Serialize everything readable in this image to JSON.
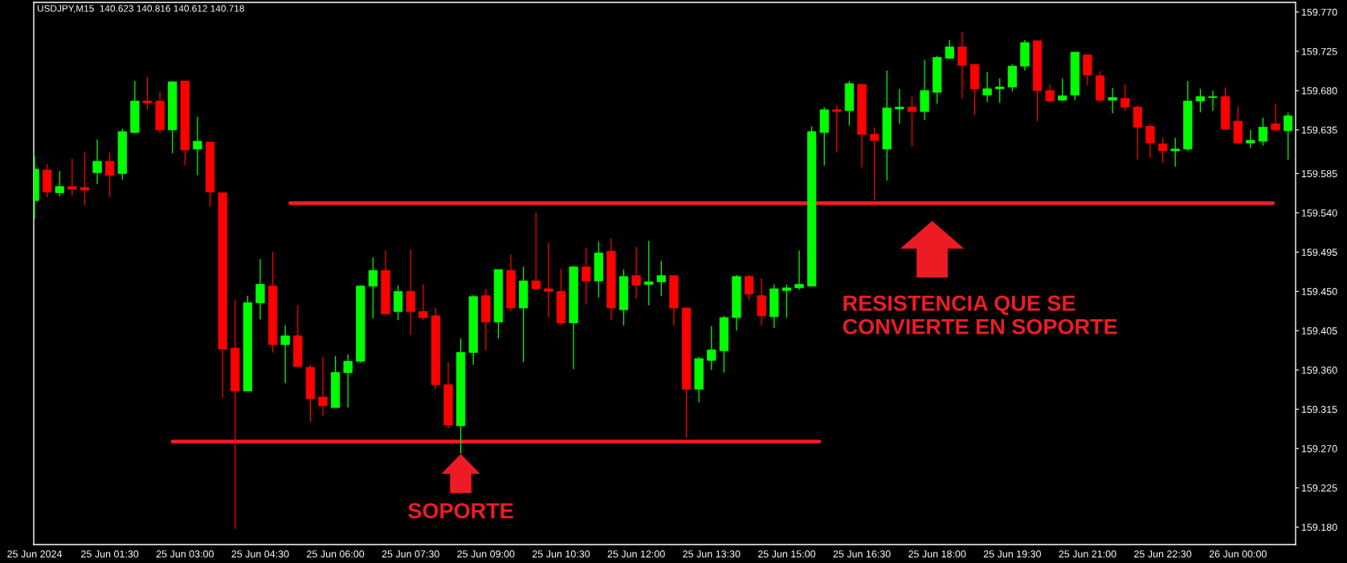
{
  "chart_data": {
    "type": "candlestick",
    "title": "USDJPY,M15  140.623 140.816 140.612 140.718",
    "x": [
      "2024-06-25T00:00",
      "2024-06-25T00:15",
      "2024-06-25T00:30",
      "2024-06-25T00:45",
      "2024-06-25T01:00",
      "2024-06-25T01:15",
      "2024-06-25T01:30",
      "2024-06-25T01:45",
      "2024-06-25T02:00",
      "2024-06-25T02:15",
      "2024-06-25T02:30",
      "2024-06-25T02:45",
      "2024-06-25T03:00",
      "2024-06-25T03:15",
      "2024-06-25T03:30",
      "2024-06-25T03:45",
      "2024-06-25T04:00",
      "2024-06-25T04:15",
      "2024-06-25T04:30",
      "2024-06-25T04:45",
      "2024-06-25T05:00",
      "2024-06-25T05:15",
      "2024-06-25T05:30",
      "2024-06-25T05:45",
      "2024-06-25T06:00",
      "2024-06-25T06:15",
      "2024-06-25T06:30",
      "2024-06-25T06:45",
      "2024-06-25T07:00",
      "2024-06-25T07:15",
      "2024-06-25T07:30",
      "2024-06-25T07:45",
      "2024-06-25T08:00",
      "2024-06-25T08:15",
      "2024-06-25T08:30",
      "2024-06-25T08:45",
      "2024-06-25T09:00",
      "2024-06-25T09:15",
      "2024-06-25T09:30",
      "2024-06-25T09:45",
      "2024-06-25T10:00",
      "2024-06-25T10:15",
      "2024-06-25T10:30",
      "2024-06-25T10:45",
      "2024-06-25T11:00",
      "2024-06-25T11:15",
      "2024-06-25T11:30",
      "2024-06-25T11:45",
      "2024-06-25T12:00",
      "2024-06-25T12:15",
      "2024-06-25T12:30",
      "2024-06-25T12:45",
      "2024-06-25T13:00",
      "2024-06-25T13:15",
      "2024-06-25T13:30",
      "2024-06-25T13:45",
      "2024-06-25T14:00",
      "2024-06-25T14:15",
      "2024-06-25T14:30",
      "2024-06-25T14:45",
      "2024-06-25T15:00",
      "2024-06-25T15:15",
      "2024-06-25T15:30",
      "2024-06-25T15:45",
      "2024-06-25T16:00",
      "2024-06-25T16:15",
      "2024-06-25T16:30",
      "2024-06-25T16:45",
      "2024-06-25T17:00",
      "2024-06-25T17:15",
      "2024-06-25T17:30",
      "2024-06-25T17:45",
      "2024-06-25T18:00",
      "2024-06-25T18:15",
      "2024-06-25T18:30",
      "2024-06-25T18:45",
      "2024-06-25T19:00",
      "2024-06-25T19:15",
      "2024-06-25T19:30",
      "2024-06-25T19:45",
      "2024-06-25T20:00",
      "2024-06-25T20:15",
      "2024-06-25T20:30",
      "2024-06-25T20:45",
      "2024-06-25T21:00",
      "2024-06-25T21:15",
      "2024-06-25T21:30",
      "2024-06-25T21:45",
      "2024-06-25T22:00",
      "2024-06-25T22:15",
      "2024-06-25T22:30",
      "2024-06-25T22:45",
      "2024-06-25T23:00",
      "2024-06-25T23:15",
      "2024-06-25T23:30",
      "2024-06-25T23:45",
      "2024-06-26T00:00",
      "2024-06-26T00:15",
      "2024-06-26T00:30",
      "2024-06-26T00:45",
      "2024-06-26T01:00"
    ],
    "ohlc": [
      [
        159.554,
        159.605,
        159.533,
        159.59
      ],
      [
        159.589,
        159.596,
        159.558,
        159.564
      ],
      [
        159.563,
        159.588,
        159.559,
        159.57
      ],
      [
        159.57,
        159.602,
        159.56,
        159.567
      ],
      [
        159.569,
        159.609,
        159.549,
        159.566
      ],
      [
        159.586,
        159.624,
        159.573,
        159.599
      ],
      [
        159.599,
        159.609,
        159.558,
        159.583
      ],
      [
        159.585,
        159.636,
        159.578,
        159.633
      ],
      [
        159.632,
        159.691,
        159.631,
        159.668
      ],
      [
        159.668,
        159.696,
        159.658,
        159.666
      ],
      [
        159.668,
        159.679,
        159.631,
        159.635
      ],
      [
        159.635,
        159.691,
        159.608,
        159.69
      ],
      [
        159.691,
        159.691,
        159.594,
        159.612
      ],
      [
        159.613,
        159.65,
        159.583,
        159.622
      ],
      [
        159.621,
        159.621,
        159.547,
        159.564
      ],
      [
        159.563,
        159.563,
        159.328,
        159.384
      ],
      [
        159.385,
        159.44,
        159.178,
        159.336
      ],
      [
        159.336,
        159.445,
        159.336,
        159.437
      ],
      [
        159.437,
        159.487,
        159.418,
        159.458
      ],
      [
        159.456,
        159.495,
        159.38,
        159.389
      ],
      [
        159.389,
        159.411,
        159.345,
        159.399
      ],
      [
        159.399,
        159.434,
        159.364,
        159.364
      ],
      [
        159.363,
        159.366,
        159.3,
        159.327
      ],
      [
        159.329,
        159.375,
        159.307,
        159.319
      ],
      [
        159.317,
        159.376,
        159.317,
        159.357
      ],
      [
        159.357,
        159.378,
        159.317,
        159.37
      ],
      [
        159.37,
        159.457,
        159.368,
        159.456
      ],
      [
        159.456,
        159.489,
        159.419,
        159.474
      ],
      [
        159.474,
        159.497,
        159.424,
        159.424
      ],
      [
        159.427,
        159.457,
        159.417,
        159.45
      ],
      [
        159.45,
        159.498,
        159.4,
        159.427
      ],
      [
        159.427,
        159.458,
        159.417,
        159.42
      ],
      [
        159.422,
        159.431,
        159.338,
        159.343
      ],
      [
        159.343,
        159.369,
        159.293,
        159.297
      ],
      [
        159.296,
        159.396,
        159.264,
        159.38
      ],
      [
        159.38,
        159.446,
        159.366,
        159.444
      ],
      [
        159.445,
        159.453,
        159.382,
        159.415
      ],
      [
        159.415,
        159.475,
        159.396,
        159.475
      ],
      [
        159.474,
        159.492,
        159.427,
        159.431
      ],
      [
        159.431,
        159.478,
        159.369,
        159.462
      ],
      [
        159.462,
        159.54,
        159.452,
        159.453
      ],
      [
        159.453,
        159.506,
        159.42,
        159.45
      ],
      [
        159.45,
        159.476,
        159.411,
        159.414
      ],
      [
        159.414,
        159.479,
        159.361,
        159.478
      ],
      [
        159.478,
        159.5,
        159.435,
        159.462
      ],
      [
        159.462,
        159.507,
        159.443,
        159.494
      ],
      [
        159.496,
        159.511,
        159.417,
        159.431
      ],
      [
        159.429,
        159.475,
        159.411,
        159.467
      ],
      [
        159.468,
        159.501,
        159.442,
        159.457
      ],
      [
        159.458,
        159.508,
        159.434,
        159.461
      ],
      [
        159.461,
        159.485,
        159.445,
        159.468
      ],
      [
        159.468,
        159.468,
        159.411,
        159.431
      ],
      [
        159.431,
        159.431,
        159.282,
        159.338
      ],
      [
        159.338,
        159.375,
        159.323,
        159.373
      ],
      [
        159.371,
        159.41,
        159.36,
        159.383
      ],
      [
        159.382,
        159.422,
        159.357,
        159.42
      ],
      [
        159.42,
        159.469,
        159.405,
        159.467
      ],
      [
        159.467,
        159.469,
        159.44,
        159.447
      ],
      [
        159.445,
        159.465,
        159.411,
        159.422
      ],
      [
        159.421,
        159.458,
        159.408,
        159.453
      ],
      [
        159.451,
        159.458,
        159.42,
        159.454
      ],
      [
        159.454,
        159.497,
        159.452,
        159.458
      ],
      [
        159.456,
        159.639,
        159.456,
        159.633
      ],
      [
        159.632,
        159.661,
        159.594,
        159.658
      ],
      [
        159.658,
        159.663,
        159.609,
        159.656
      ],
      [
        159.657,
        159.691,
        159.64,
        159.688
      ],
      [
        159.687,
        159.688,
        159.592,
        159.63
      ],
      [
        159.63,
        159.638,
        159.554,
        159.623
      ],
      [
        159.613,
        159.703,
        159.577,
        159.66
      ],
      [
        159.659,
        159.682,
        159.642,
        159.661
      ],
      [
        159.661,
        159.673,
        159.616,
        159.656
      ],
      [
        159.656,
        159.715,
        159.646,
        159.68
      ],
      [
        159.678,
        159.72,
        159.665,
        159.718
      ],
      [
        159.717,
        159.738,
        159.716,
        159.73
      ],
      [
        159.73,
        159.747,
        159.671,
        159.709
      ],
      [
        159.71,
        159.71,
        159.652,
        159.682
      ],
      [
        159.675,
        159.701,
        159.667,
        159.682
      ],
      [
        159.682,
        159.694,
        159.666,
        159.684
      ],
      [
        159.684,
        159.71,
        159.679,
        159.708
      ],
      [
        159.708,
        159.738,
        159.703,
        159.735
      ],
      [
        159.737,
        159.737,
        159.645,
        159.68
      ],
      [
        159.68,
        159.687,
        159.667,
        159.668
      ],
      [
        159.669,
        159.694,
        159.668,
        159.674
      ],
      [
        159.675,
        159.724,
        159.669,
        159.724
      ],
      [
        159.721,
        159.721,
        159.686,
        159.698
      ],
      [
        159.697,
        159.702,
        159.667,
        159.669
      ],
      [
        159.669,
        159.683,
        159.654,
        159.672
      ],
      [
        159.671,
        159.687,
        159.657,
        159.661
      ],
      [
        159.661,
        159.663,
        159.601,
        159.638
      ],
      [
        159.639,
        159.642,
        159.603,
        159.62
      ],
      [
        159.619,
        159.626,
        159.597,
        159.611
      ],
      [
        159.611,
        159.626,
        159.593,
        159.613
      ],
      [
        159.613,
        159.691,
        159.611,
        159.668
      ],
      [
        159.668,
        159.682,
        159.655,
        159.673
      ],
      [
        159.672,
        159.68,
        159.657,
        159.673
      ],
      [
        159.673,
        159.684,
        159.635,
        159.636
      ],
      [
        159.645,
        159.662,
        159.62,
        159.62
      ],
      [
        159.62,
        159.635,
        159.614,
        159.623
      ],
      [
        159.622,
        159.649,
        159.617,
        159.638
      ],
      [
        159.642,
        159.665,
        159.633,
        159.635
      ],
      [
        159.634,
        159.655,
        159.601,
        159.651
      ]
    ],
    "colors": [
      "#00ff00",
      "#ff0000",
      "#00ff00",
      "#ff0000",
      "#ff0000",
      "#00ff00",
      "#ff0000",
      "#00ff00",
      "#00ff00",
      "#ff0000",
      "#ff0000",
      "#00ff00",
      "#ff0000",
      "#00ff00",
      "#ff0000",
      "#ff0000",
      "#ff0000",
      "#00ff00",
      "#00ff00",
      "#ff0000",
      "#00ff00",
      "#ff0000",
      "#ff0000",
      "#ff0000",
      "#00ff00",
      "#00ff00",
      "#00ff00",
      "#00ff00",
      "#ff0000",
      "#00ff00",
      "#ff0000",
      "#ff0000",
      "#ff0000",
      "#ff0000",
      "#00ff00",
      "#00ff00",
      "#ff0000",
      "#00ff00",
      "#ff0000",
      "#00ff00",
      "#ff0000",
      "#ff0000",
      "#ff0000",
      "#00ff00",
      "#ff0000",
      "#00ff00",
      "#ff0000",
      "#00ff00",
      "#ff0000",
      "#00ff00",
      "#00ff00",
      "#ff0000",
      "#ff0000",
      "#00ff00",
      "#00ff00",
      "#00ff00",
      "#00ff00",
      "#ff0000",
      "#ff0000",
      "#00ff00",
      "#00ff00",
      "#00ff00",
      "#00ff00",
      "#00ff00",
      "#ff0000",
      "#00ff00",
      "#ff0000",
      "#ff0000",
      "#00ff00",
      "#00ff00",
      "#ff0000",
      "#00ff00",
      "#00ff00",
      "#00ff00",
      "#ff0000",
      "#ff0000",
      "#00ff00",
      "#00ff00",
      "#00ff00",
      "#00ff00",
      "#ff0000",
      "#ff0000",
      "#00ff00",
      "#00ff00",
      "#ff0000",
      "#ff0000",
      "#00ff00",
      "#ff0000",
      "#ff0000",
      "#ff0000",
      "#ff0000",
      "#00ff00",
      "#00ff00",
      "#00ff00",
      "#00ff00",
      "#ff0000",
      "#ff0000",
      "#00ff00",
      "#00ff00",
      "#ff0000",
      "#00ff00"
    ],
    "series": [
      {
        "type": "line",
        "x": [
          "2024-06-25T02:45",
          "2024-06-25T15:39"
        ],
        "values": [
          159.278,
          159.278
        ],
        "color": "#ed1c24"
      },
      {
        "type": "line",
        "x": [
          "2024-06-25T05:06",
          "2024-06-26T00:42"
        ],
        "values": [
          159.551,
          159.551
        ],
        "color": "#ed1c24"
      }
    ],
    "annotations": [
      {
        "text": "SOPORTE",
        "x": "2024-06-25T08:30",
        "y": 159.278
      },
      "RESISTENCIA QUE SE\nCONVIERTE EN SOPORTE"
    ],
    "xlim": [
      "2024-06-24T23:59",
      "2024-06-26T01:09"
    ],
    "xticks": [
      {
        "value": "2024-06-25T00:00",
        "label": "25 Jun 2024"
      },
      {
        "value": "2024-06-25T01:30",
        "label": "25 Jun 01:30"
      },
      {
        "value": "2024-06-25T03:00",
        "label": "25 Jun 03:00"
      },
      {
        "value": "2024-06-25T04:30",
        "label": "25 Jun 04:30"
      },
      {
        "value": "2024-06-25T06:00",
        "label": "25 Jun 06:00"
      },
      {
        "value": "2024-06-25T07:30",
        "label": "25 Jun 07:30"
      },
      {
        "value": "2024-06-25T09:00",
        "label": "25 Jun 09:00"
      },
      {
        "value": "2024-06-25T10:30",
        "label": "25 Jun 10:30"
      },
      {
        "value": "2024-06-25T12:00",
        "label": "25 Jun 12:00"
      },
      {
        "value": "2024-06-25T13:30",
        "label": "25 Jun 13:30"
      },
      {
        "value": "2024-06-25T15:00",
        "label": "25 Jun 15:00"
      },
      {
        "value": "2024-06-25T16:30",
        "label": "25 Jun 16:30"
      },
      {
        "value": "2024-06-25T18:00",
        "label": "25 Jun 18:00"
      },
      {
        "value": "2024-06-25T19:30",
        "label": "25 Jun 19:30"
      },
      {
        "value": "2024-06-25T21:00",
        "label": "25 Jun 21:00"
      },
      {
        "value": "2024-06-25T22:30",
        "label": "25 Jun 22:30"
      },
      {
        "value": "2024-06-26T00:00",
        "label": "26 Jun 00:00"
      }
    ],
    "ylim": [
      159.16,
      159.781
    ],
    "yticks": [
      {
        "value": 159.77,
        "label": "159.770"
      },
      159.725,
      {
        "value": 159.68,
        "label": "159.680"
      },
      159.635,
      159.585,
      {
        "value": 159.54,
        "label": "159.540"
      },
      159.495,
      {
        "value": 159.45,
        "label": "159.450"
      },
      159.405,
      {
        "value": 159.36,
        "label": "159.360"
      },
      159.315,
      {
        "value": 159.27,
        "label": "159.270"
      },
      159.225,
      {
        "value": 159.18,
        "label": "159.180"
      }
    ]
  }
}
